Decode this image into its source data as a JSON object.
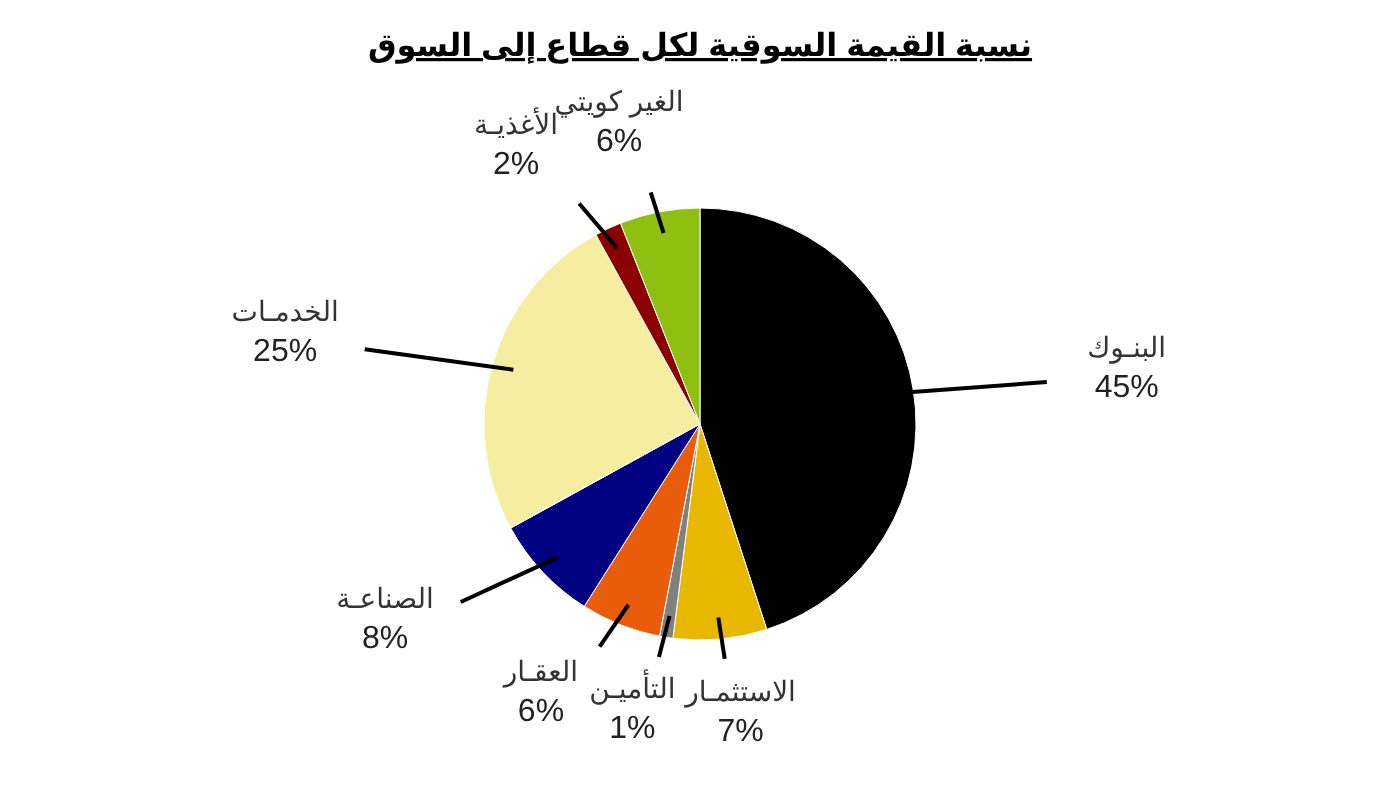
{
  "chart_data": {
    "type": "pie",
    "title": "نسبة القيمة السوقية لكل قطاع إلى السوق",
    "categories": [
      "البنـوك",
      "الاستثمـار",
      "التأميـن",
      "العقـار",
      "الصناعـة",
      "الخدمـات",
      "الأغذيـة",
      "الغير كويتي"
    ],
    "values": [
      45,
      7,
      1,
      6,
      8,
      25,
      2,
      6
    ],
    "value_labels": [
      "45%",
      "7%",
      "1%",
      "6%",
      "8%",
      "25%",
      "2%",
      "6%"
    ],
    "colors": [
      "#000000",
      "#e8b800",
      "#808080",
      "#e85c0a",
      "#000080",
      "#f5eea0",
      "#8b0000",
      "#8fbf10"
    ]
  }
}
